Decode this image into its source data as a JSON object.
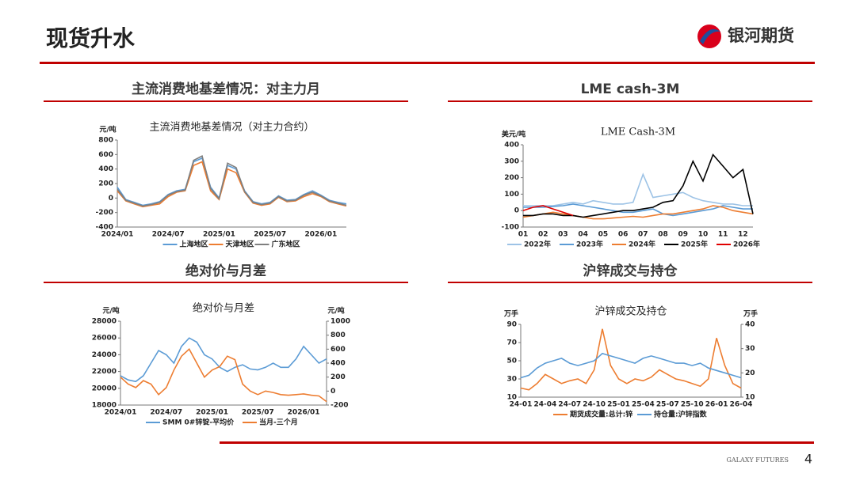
{
  "header": {
    "title": "现货升水",
    "logo": "银河期货"
  },
  "panels": [
    "主流消费地基差情况：对主力月",
    "LME cash-3M",
    "绝对价与月差",
    "沪锌成交与持仓"
  ],
  "footer": {
    "brand": "GALAXY FUTURES",
    "page": 4
  },
  "chart_data": [
    {
      "type": "line",
      "title": "主流消费地基差情况（对主力合约）",
      "y_label": "元/吨",
      "categories": [
        "2024/01",
        null,
        null,
        null,
        null,
        null,
        "2024/07",
        null,
        null,
        null,
        null,
        null,
        "2025/01",
        null,
        null,
        null,
        null,
        null,
        "2025/07",
        null,
        null,
        null,
        null,
        null,
        "2026/01",
        null,
        null,
        null
      ],
      "ylim": [
        -400,
        800
      ],
      "yticks": [
        -400,
        -200,
        0,
        200,
        400,
        600,
        800
      ],
      "series": [
        {
          "name": "上海地区",
          "color": "#5b9bd5",
          "values": [
            150,
            -20,
            -60,
            -100,
            -80,
            -50,
            50,
            100,
            120,
            500,
            550,
            150,
            0,
            450,
            400,
            100,
            -50,
            -80,
            -60,
            30,
            -30,
            -20,
            50,
            100,
            40,
            -30,
            -60,
            -80
          ]
        },
        {
          "name": "天津地区",
          "color": "#ed7d31",
          "values": [
            100,
            -40,
            -80,
            -120,
            -100,
            -80,
            20,
            80,
            100,
            450,
            500,
            100,
            -20,
            400,
            350,
            80,
            -70,
            -100,
            -80,
            10,
            -50,
            -40,
            20,
            60,
            20,
            -50,
            -80,
            -110
          ]
        },
        {
          "name": "广东地区",
          "color": "#7f7f7f",
          "values": [
            120,
            -30,
            -70,
            -110,
            -90,
            -60,
            40,
            90,
            110,
            520,
            580,
            130,
            -10,
            480,
            420,
            90,
            -60,
            -90,
            -70,
            20,
            -40,
            -30,
            40,
            80,
            30,
            -40,
            -70,
            -100
          ]
        }
      ]
    },
    {
      "type": "line",
      "title": "LME Cash-3M",
      "y_label": "美元/吨",
      "categories": [
        "01",
        null,
        "02",
        null,
        "03",
        null,
        "04",
        null,
        "05",
        null,
        "06",
        null,
        "07",
        null,
        "08",
        null,
        "09",
        null,
        "10",
        null,
        "11",
        null,
        "12",
        null
      ],
      "ylim": [
        -100,
        400
      ],
      "yticks": [
        -100,
        0,
        100,
        200,
        300,
        400
      ],
      "series": [
        {
          "name": "2022年",
          "color": "#9dc3e6",
          "values": [
            30,
            30,
            30,
            30,
            40,
            50,
            40,
            60,
            50,
            40,
            40,
            50,
            220,
            80,
            90,
            100,
            110,
            80,
            60,
            50,
            40,
            40,
            30,
            30
          ]
        },
        {
          "name": "2023年",
          "color": "#5b9bd5",
          "values": [
            20,
            20,
            20,
            25,
            30,
            40,
            30,
            20,
            10,
            0,
            -10,
            -10,
            0,
            10,
            -20,
            -30,
            -20,
            -10,
            0,
            10,
            30,
            20,
            10,
            10
          ]
        },
        {
          "name": "2024年",
          "color": "#ed7d31",
          "values": [
            -40,
            -30,
            -20,
            -10,
            -20,
            -30,
            -40,
            -50,
            -50,
            -45,
            -40,
            -35,
            -40,
            -30,
            -20,
            -20,
            -10,
            0,
            10,
            30,
            20,
            0,
            -10,
            -20
          ]
        },
        {
          "name": "2025年",
          "color": "#000000",
          "values": [
            -30,
            -30,
            -20,
            -20,
            -30,
            -30,
            -40,
            -30,
            -20,
            -10,
            0,
            0,
            10,
            20,
            50,
            60,
            150,
            300,
            180,
            340,
            270,
            200,
            250,
            -20
          ]
        },
        {
          "name": "2026年",
          "color": "#e00000",
          "values": [
            0,
            20,
            30,
            10,
            -10,
            -30,
            null,
            null,
            null,
            null,
            null,
            null,
            null,
            null,
            null,
            null,
            null,
            null,
            null,
            null,
            null,
            null,
            null,
            null
          ]
        }
      ]
    },
    {
      "type": "line",
      "title": "绝对价与月差",
      "y_label": "元/吨",
      "y2_label": "元/吨",
      "categories": [
        "2024/01",
        null,
        null,
        null,
        null,
        null,
        "2024/07",
        null,
        null,
        null,
        null,
        null,
        "2025/01",
        null,
        null,
        null,
        null,
        null,
        "2025/07",
        null,
        null,
        null,
        null,
        null,
        "2026/01",
        null,
        null,
        null
      ],
      "ylim": [
        18000,
        28000
      ],
      "yticks": [
        18000,
        20000,
        22000,
        24000,
        26000,
        28000
      ],
      "y2lim": [
        -200,
        1000
      ],
      "y2ticks": [
        -200,
        0,
        200,
        400,
        600,
        800,
        1000
      ],
      "series": [
        {
          "name": "SMM 0#锌锭-平均价",
          "color": "#5b9bd5",
          "values": [
            21500,
            21000,
            20800,
            21500,
            23000,
            24500,
            24000,
            23000,
            25000,
            26000,
            25500,
            24000,
            23500,
            22500,
            22000,
            22500,
            22800,
            22300,
            22200,
            22500,
            23000,
            22500,
            22500,
            23500,
            25000,
            24000,
            23000,
            23500
          ]
        },
        {
          "name": "当月-三个月",
          "color": "#ed7d31",
          "axis": "y2",
          "values": [
            200,
            100,
            50,
            150,
            100,
            -50,
            50,
            300,
            500,
            600,
            400,
            200,
            300,
            350,
            500,
            450,
            100,
            0,
            -50,
            0,
            -20,
            -50,
            -60,
            -50,
            -40,
            -60,
            -70,
            -150
          ]
        }
      ]
    },
    {
      "type": "line",
      "title": "沪锌成交及持仓",
      "y_label": "万手",
      "y2_label": "万手",
      "categories": [
        "24-01",
        null,
        null,
        "24-04",
        null,
        null,
        "24-07",
        null,
        null,
        "24-10",
        null,
        null,
        "25-01",
        null,
        null,
        "25-04",
        null,
        null,
        "25-07",
        null,
        null,
        "25-10",
        null,
        null,
        "26-01",
        null,
        null,
        "26-04"
      ],
      "ylim": [
        10,
        90
      ],
      "yticks": [
        10,
        30,
        50,
        70,
        90
      ],
      "y2lim": [
        10,
        40
      ],
      "y2ticks": [
        10,
        20,
        30,
        40
      ],
      "series": [
        {
          "name": "期货成交量:总计:锌",
          "color": "#ed7d31",
          "values": [
            20,
            18,
            25,
            35,
            30,
            25,
            28,
            30,
            25,
            40,
            85,
            45,
            30,
            25,
            30,
            28,
            32,
            40,
            35,
            30,
            28,
            25,
            22,
            30,
            75,
            45,
            25,
            20
          ]
        },
        {
          "name": "持仓量:沪锌指数",
          "color": "#5b9bd5",
          "axis": "y2",
          "values": [
            18,
            19,
            22,
            24,
            25,
            26,
            24,
            23,
            24,
            25,
            28,
            27,
            26,
            25,
            24,
            26,
            27,
            26,
            25,
            24,
            24,
            23,
            24,
            22,
            21,
            20,
            19,
            18
          ]
        }
      ]
    }
  ]
}
